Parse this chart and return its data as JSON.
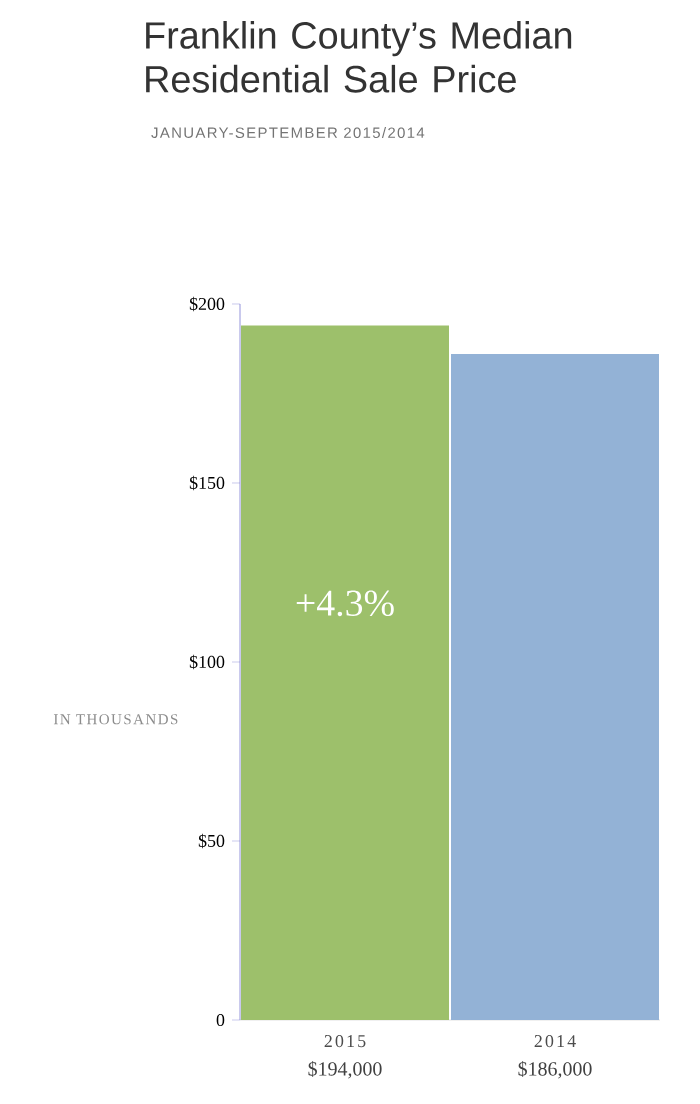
{
  "chart_data": {
    "type": "bar",
    "title": "Franklin County’s Median Residential Sale Price",
    "subtitle": "JANUARY-SEPTEMBER 2015/2014",
    "ylabel": "IN THOUSANDS",
    "categories": [
      "2015",
      "2014"
    ],
    "values": [
      194,
      186
    ],
    "colors": [
      "#9dc06b",
      "#93b2d6"
    ],
    "ylim": [
      0,
      200
    ],
    "yticks": [
      0,
      {
        "value": 50,
        "label": "$50"
      },
      {
        "value": 100,
        "label": "$100"
      },
      {
        "value": 150,
        "label": "$150"
      },
      {
        "value": 200,
        "label": "$200"
      }
    ],
    "annotations": [
      "+4.3%",
      "$194,000",
      "$186,000"
    ],
    "grid": false
  }
}
